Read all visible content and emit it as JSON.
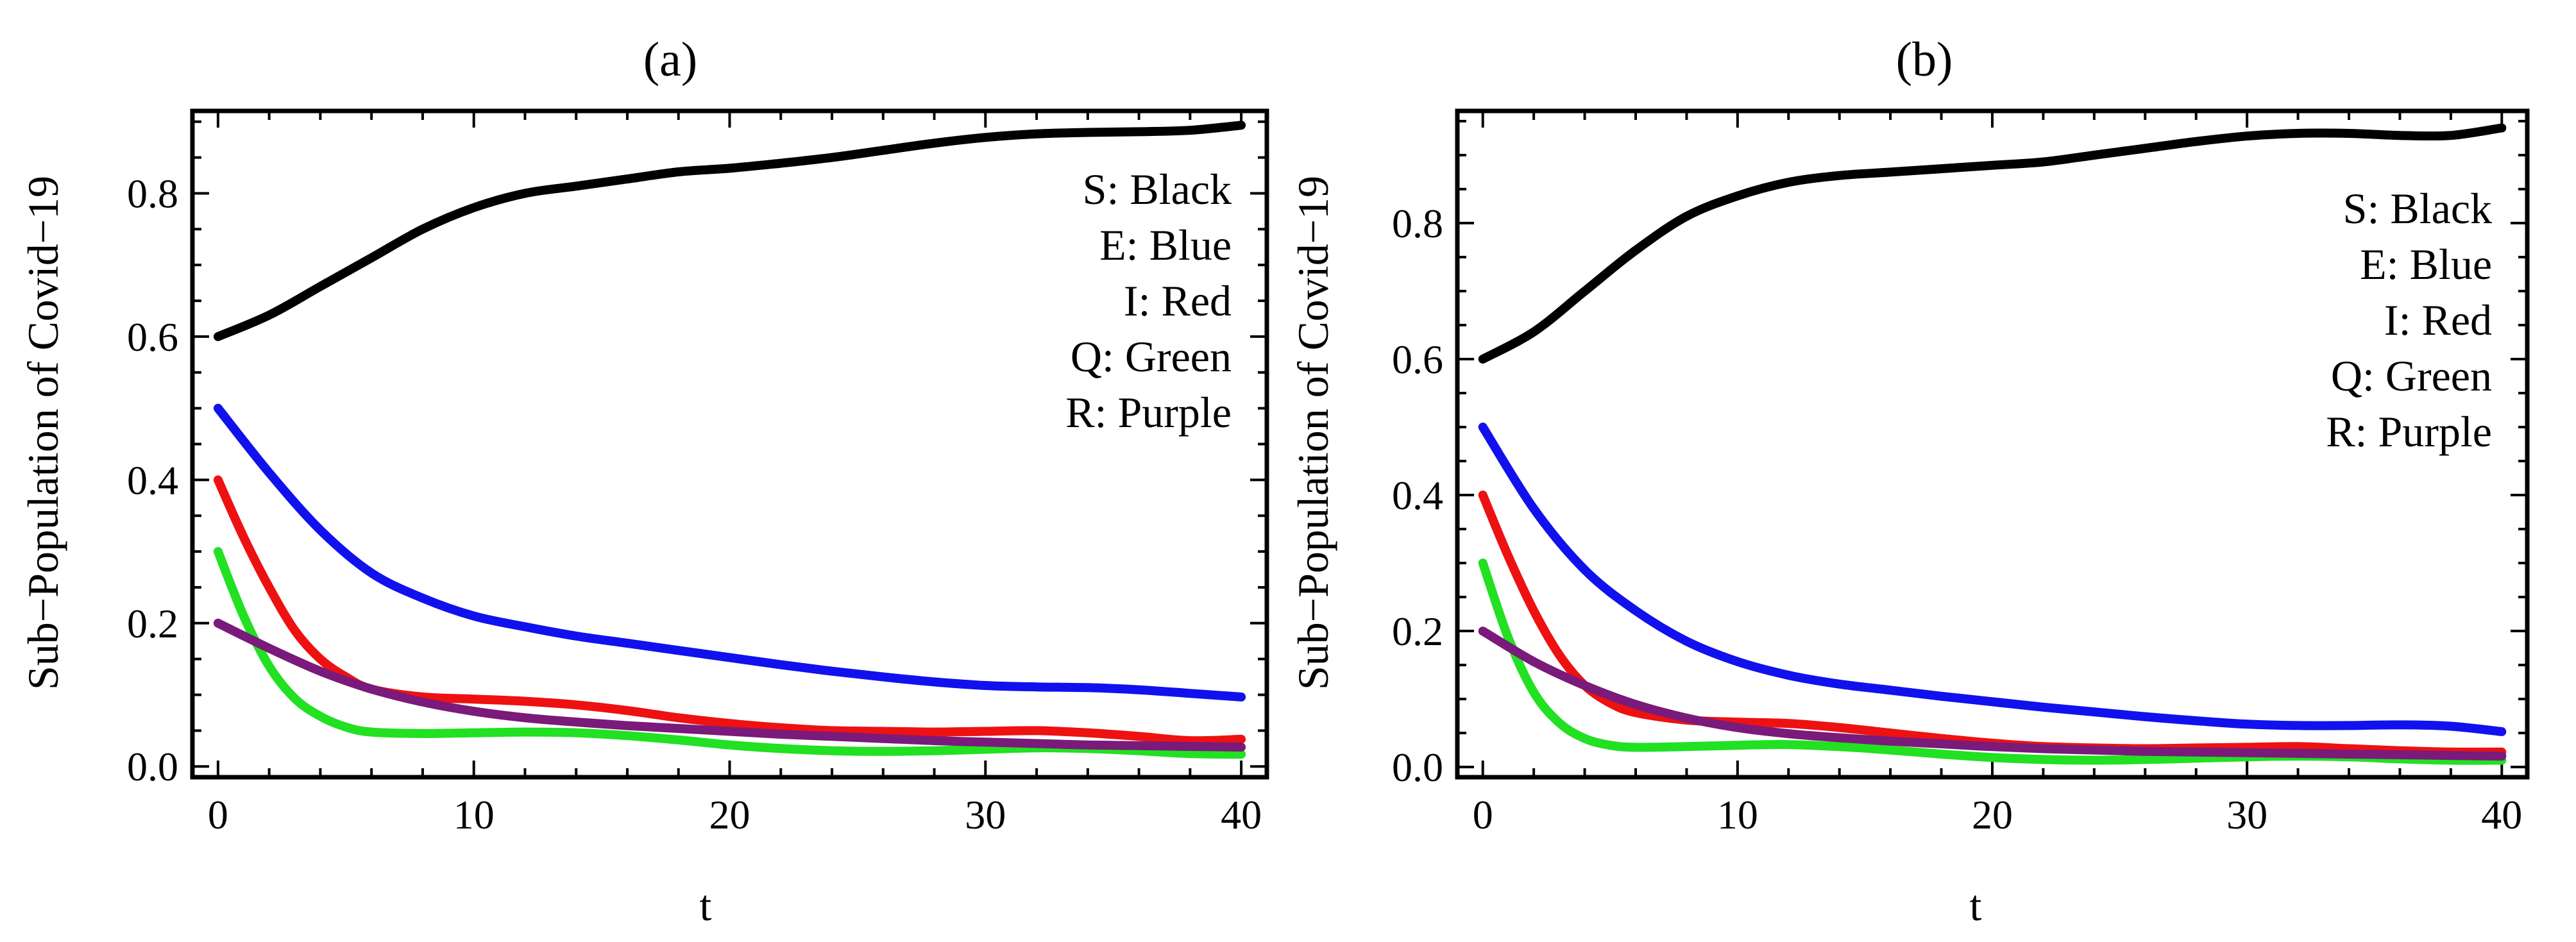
{
  "chart_data": [
    {
      "type": "line",
      "title": "(a)",
      "xlabel": "t",
      "ylabel": "Sub−Population of Covid−19",
      "xlim": [
        -1,
        41
      ],
      "ylim": [
        -0.015,
        0.915
      ],
      "x_ticks": [
        0,
        10,
        20,
        30,
        40
      ],
      "y_ticks": [
        0.0,
        0.2,
        0.4,
        0.6,
        0.8
      ],
      "y_tick_labels": [
        "0.0",
        "0.2",
        "0.4",
        "0.6",
        "0.8"
      ],
      "grid": false,
      "legend_position": "top-right",
      "legend": [
        "S:  Black",
        "E:  Blue",
        "I:   Red",
        "Q:  Green",
        "R:  Purple"
      ],
      "series": [
        {
          "name": "S",
          "color": "#000000",
          "x": [
            0,
            2,
            4,
            6,
            8,
            10,
            12,
            14,
            16,
            18,
            20,
            22,
            24,
            26,
            28,
            30,
            32,
            34,
            36,
            38,
            40
          ],
          "y": [
            0.6,
            0.63,
            0.67,
            0.71,
            0.75,
            0.78,
            0.8,
            0.81,
            0.82,
            0.83,
            0.835,
            0.842,
            0.85,
            0.86,
            0.87,
            0.878,
            0.883,
            0.885,
            0.886,
            0.888,
            0.895
          ]
        },
        {
          "name": "E",
          "color": "#1111ee",
          "x": [
            0,
            2,
            4,
            6,
            8,
            10,
            12,
            14,
            16,
            18,
            20,
            22,
            24,
            26,
            28,
            30,
            32,
            34,
            36,
            38,
            40
          ],
          "y": [
            0.5,
            0.41,
            0.33,
            0.27,
            0.235,
            0.21,
            0.195,
            0.182,
            0.172,
            0.162,
            0.152,
            0.142,
            0.133,
            0.125,
            0.118,
            0.113,
            0.111,
            0.11,
            0.107,
            0.102,
            0.097
          ]
        },
        {
          "name": "I",
          "color": "#ee1111",
          "x": [
            0,
            1,
            2,
            3,
            4,
            5,
            6,
            8,
            10,
            12,
            14,
            16,
            18,
            20,
            22,
            24,
            26,
            28,
            30,
            32,
            34,
            36,
            38,
            40
          ],
          "y": [
            0.4,
            0.32,
            0.25,
            0.19,
            0.15,
            0.125,
            0.108,
            0.097,
            0.094,
            0.091,
            0.086,
            0.078,
            0.068,
            0.06,
            0.054,
            0.05,
            0.049,
            0.048,
            0.049,
            0.05,
            0.047,
            0.042,
            0.036,
            0.038
          ]
        },
        {
          "name": "Q",
          "color": "#22e022",
          "x": [
            0,
            1,
            2,
            3,
            4,
            5,
            6,
            8,
            10,
            12,
            14,
            16,
            18,
            20,
            22,
            24,
            26,
            28,
            30,
            32,
            34,
            36,
            38,
            40
          ],
          "y": [
            0.3,
            0.21,
            0.14,
            0.095,
            0.07,
            0.055,
            0.048,
            0.046,
            0.047,
            0.048,
            0.047,
            0.043,
            0.037,
            0.03,
            0.025,
            0.022,
            0.021,
            0.022,
            0.024,
            0.026,
            0.025,
            0.022,
            0.018,
            0.017
          ]
        },
        {
          "name": "R",
          "color": "#7a1a7a",
          "x": [
            0,
            2,
            4,
            6,
            8,
            10,
            12,
            14,
            16,
            18,
            20,
            22,
            24,
            26,
            28,
            30,
            32,
            34,
            36,
            38,
            40
          ],
          "y": [
            0.2,
            0.165,
            0.133,
            0.108,
            0.09,
            0.077,
            0.068,
            0.062,
            0.057,
            0.053,
            0.049,
            0.045,
            0.042,
            0.039,
            0.036,
            0.034,
            0.032,
            0.03,
            0.029,
            0.028,
            0.027
          ]
        }
      ]
    },
    {
      "type": "line",
      "title": "(b)",
      "xlabel": "t",
      "ylabel": "Sub−Population of Covid−19",
      "xlim": [
        -1,
        41
      ],
      "ylim": [
        -0.015,
        0.965
      ],
      "x_ticks": [
        0,
        10,
        20,
        30,
        40
      ],
      "y_ticks": [
        0.0,
        0.2,
        0.4,
        0.6,
        0.8
      ],
      "y_tick_labels": [
        "0.0",
        "0.2",
        "0.4",
        "0.6",
        "0.8"
      ],
      "grid": false,
      "legend_position": "top-right",
      "legend": [
        "S:  Black",
        "E:  Blue",
        "I:   Red",
        "Q:  Green",
        "R:  Purple"
      ],
      "series": [
        {
          "name": "S",
          "color": "#000000",
          "x": [
            0,
            2,
            4,
            6,
            8,
            10,
            12,
            14,
            16,
            18,
            20,
            22,
            24,
            26,
            28,
            30,
            32,
            34,
            36,
            38,
            40
          ],
          "y": [
            0.6,
            0.64,
            0.7,
            0.76,
            0.81,
            0.84,
            0.86,
            0.87,
            0.875,
            0.88,
            0.885,
            0.89,
            0.9,
            0.91,
            0.92,
            0.928,
            0.932,
            0.932,
            0.929,
            0.929,
            0.94
          ]
        },
        {
          "name": "E",
          "color": "#1111ee",
          "x": [
            0,
            2,
            4,
            6,
            8,
            10,
            12,
            14,
            16,
            18,
            20,
            22,
            24,
            26,
            28,
            30,
            32,
            34,
            36,
            38,
            40
          ],
          "y": [
            0.5,
            0.38,
            0.29,
            0.23,
            0.185,
            0.155,
            0.135,
            0.122,
            0.113,
            0.104,
            0.096,
            0.088,
            0.081,
            0.074,
            0.068,
            0.063,
            0.061,
            0.061,
            0.062,
            0.06,
            0.052
          ]
        },
        {
          "name": "I",
          "color": "#ee1111",
          "x": [
            0,
            1,
            2,
            3,
            4,
            5,
            6,
            8,
            10,
            12,
            14,
            16,
            18,
            20,
            22,
            24,
            26,
            28,
            30,
            32,
            34,
            36,
            38,
            40
          ],
          "y": [
            0.4,
            0.31,
            0.23,
            0.165,
            0.12,
            0.094,
            0.08,
            0.069,
            0.066,
            0.064,
            0.058,
            0.05,
            0.042,
            0.035,
            0.03,
            0.028,
            0.027,
            0.028,
            0.029,
            0.03,
            0.027,
            0.024,
            0.022,
            0.022
          ]
        },
        {
          "name": "Q",
          "color": "#22e022",
          "x": [
            0,
            1,
            2,
            3,
            4,
            5,
            6,
            8,
            10,
            12,
            14,
            16,
            18,
            20,
            22,
            24,
            26,
            28,
            30,
            32,
            34,
            36,
            38,
            40
          ],
          "y": [
            0.3,
            0.19,
            0.11,
            0.065,
            0.042,
            0.032,
            0.029,
            0.03,
            0.032,
            0.033,
            0.03,
            0.025,
            0.019,
            0.014,
            0.011,
            0.01,
            0.011,
            0.013,
            0.015,
            0.016,
            0.015,
            0.012,
            0.01,
            0.01
          ]
        },
        {
          "name": "R",
          "color": "#7a1a7a",
          "x": [
            0,
            2,
            4,
            6,
            8,
            10,
            12,
            14,
            16,
            18,
            20,
            22,
            24,
            26,
            28,
            30,
            32,
            34,
            36,
            38,
            40
          ],
          "y": [
            0.2,
            0.155,
            0.12,
            0.092,
            0.072,
            0.058,
            0.049,
            0.043,
            0.038,
            0.034,
            0.03,
            0.027,
            0.025,
            0.023,
            0.022,
            0.021,
            0.02,
            0.019,
            0.018,
            0.017,
            0.016
          ]
        }
      ]
    }
  ]
}
